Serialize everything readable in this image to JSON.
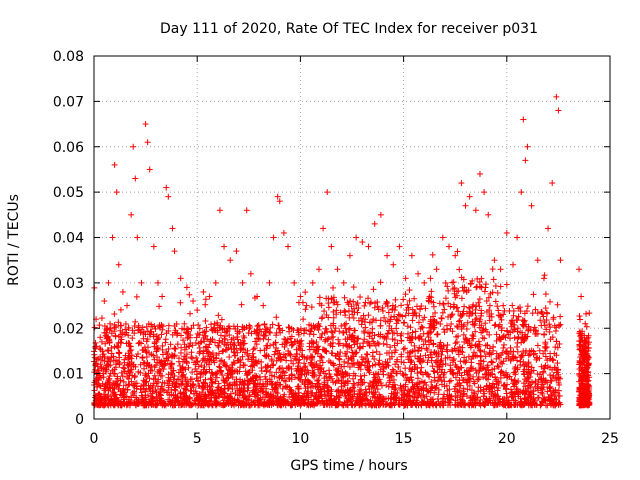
{
  "chart_data": {
    "type": "scatter",
    "title": "Day 111 of 2020, Rate Of TEC Index for receiver p031",
    "xlabel": "GPS time / hours",
    "ylabel": "ROTI / TECUs",
    "xlim": [
      0,
      25
    ],
    "ylim": [
      0,
      0.08
    ],
    "xticks": [
      "0",
      "5",
      "10",
      "15",
      "20",
      "25"
    ],
    "yticks": [
      "0",
      "0.01",
      "0.02",
      "0.03",
      "0.04",
      "0.05",
      "0.06",
      "0.07",
      "0.08"
    ],
    "grid": true,
    "marker": "plus",
    "color": "#ff0000",
    "series": [
      {
        "values_note_removed": true,
        "points": [
          [
            0.1,
            0.022
          ],
          [
            0.3,
            0.018
          ],
          [
            0.5,
            0.026
          ],
          [
            0.7,
            0.03
          ],
          [
            0.9,
            0.04
          ],
          [
            1.0,
            0.056
          ],
          [
            1.1,
            0.05
          ],
          [
            1.2,
            0.034
          ],
          [
            1.4,
            0.028
          ],
          [
            1.6,
            0.025
          ],
          [
            1.8,
            0.045
          ],
          [
            1.9,
            0.06
          ],
          [
            2.0,
            0.053
          ],
          [
            2.1,
            0.04
          ],
          [
            2.3,
            0.03
          ],
          [
            2.5,
            0.065
          ],
          [
            2.6,
            0.061
          ],
          [
            2.7,
            0.055
          ],
          [
            2.9,
            0.038
          ],
          [
            3.1,
            0.03
          ],
          [
            3.3,
            0.027
          ],
          [
            3.5,
            0.051
          ],
          [
            3.6,
            0.049
          ],
          [
            3.8,
            0.042
          ],
          [
            3.9,
            0.037
          ],
          [
            4.2,
            0.031
          ],
          [
            4.5,
            0.029
          ],
          [
            4.8,
            0.026
          ],
          [
            5.0,
            0.024
          ],
          [
            5.3,
            0.028
          ],
          [
            5.6,
            0.027
          ],
          [
            5.9,
            0.03
          ],
          [
            6.1,
            0.046
          ],
          [
            6.3,
            0.038
          ],
          [
            6.6,
            0.035
          ],
          [
            6.9,
            0.037
          ],
          [
            7.2,
            0.03
          ],
          [
            7.4,
            0.046
          ],
          [
            7.6,
            0.032
          ],
          [
            7.9,
            0.027
          ],
          [
            8.2,
            0.025
          ],
          [
            8.5,
            0.03
          ],
          [
            8.7,
            0.04
          ],
          [
            8.9,
            0.049
          ],
          [
            9.0,
            0.048
          ],
          [
            9.2,
            0.041
          ],
          [
            9.4,
            0.038
          ],
          [
            9.7,
            0.03
          ],
          [
            10.0,
            0.027
          ],
          [
            10.3,
            0.025
          ],
          [
            10.6,
            0.03
          ],
          [
            10.9,
            0.033
          ],
          [
            11.1,
            0.042
          ],
          [
            11.3,
            0.05
          ],
          [
            11.5,
            0.038
          ],
          [
            11.8,
            0.033
          ],
          [
            12.1,
            0.03
          ],
          [
            12.4,
            0.036
          ],
          [
            12.7,
            0.04
          ],
          [
            13.0,
            0.039
          ],
          [
            13.3,
            0.038
          ],
          [
            13.6,
            0.043
          ],
          [
            13.9,
            0.045
          ],
          [
            14.2,
            0.036
          ],
          [
            14.5,
            0.034
          ],
          [
            14.8,
            0.038
          ],
          [
            15.1,
            0.031
          ],
          [
            15.4,
            0.036
          ],
          [
            15.7,
            0.032
          ],
          [
            16.0,
            0.03
          ],
          [
            16.3,
            0.031
          ],
          [
            16.6,
            0.033
          ],
          [
            16.9,
            0.04
          ],
          [
            17.2,
            0.038
          ],
          [
            17.5,
            0.036
          ],
          [
            17.8,
            0.052
          ],
          [
            18.0,
            0.047
          ],
          [
            18.2,
            0.049
          ],
          [
            18.5,
            0.046
          ],
          [
            18.7,
            0.054
          ],
          [
            18.9,
            0.05
          ],
          [
            19.1,
            0.045
          ],
          [
            19.4,
            0.035
          ],
          [
            19.7,
            0.033
          ],
          [
            20.0,
            0.041
          ],
          [
            20.3,
            0.034
          ],
          [
            20.5,
            0.04
          ],
          [
            20.7,
            0.05
          ],
          [
            20.8,
            0.066
          ],
          [
            20.9,
            0.057
          ],
          [
            21.0,
            0.06
          ],
          [
            21.2,
            0.047
          ],
          [
            21.5,
            0.035
          ],
          [
            21.8,
            0.031
          ],
          [
            22.0,
            0.042
          ],
          [
            22.2,
            0.052
          ],
          [
            22.4,
            0.071
          ],
          [
            22.5,
            0.068
          ],
          [
            22.6,
            0.035
          ],
          [
            23.5,
            0.033
          ],
          [
            23.6,
            0.027
          ],
          [
            23.8,
            0.021
          ]
        ]
      }
    ]
  }
}
